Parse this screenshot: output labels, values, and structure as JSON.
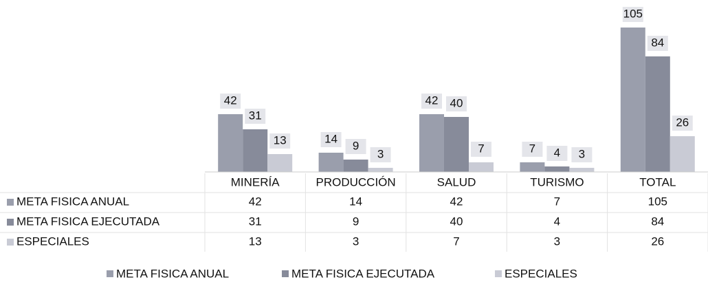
{
  "chart_data": {
    "type": "bar",
    "categories": [
      "MINERÍA",
      "PRODUCCIÓN",
      "SALUD",
      "TURISMO",
      "TOTAL"
    ],
    "series": [
      {
        "name": "META FISICA ANUAL",
        "color": "#9a9eac",
        "values": [
          42,
          14,
          42,
          7,
          105
        ]
      },
      {
        "name": "META FISICA EJECUTADA",
        "color": "#878b9a",
        "values": [
          31,
          9,
          40,
          4,
          84
        ]
      },
      {
        "name": "ESPECIALES",
        "color": "#c9cbd5",
        "values": [
          13,
          3,
          7,
          3,
          26
        ]
      }
    ],
    "legend": "bottom",
    "data_table": true
  }
}
